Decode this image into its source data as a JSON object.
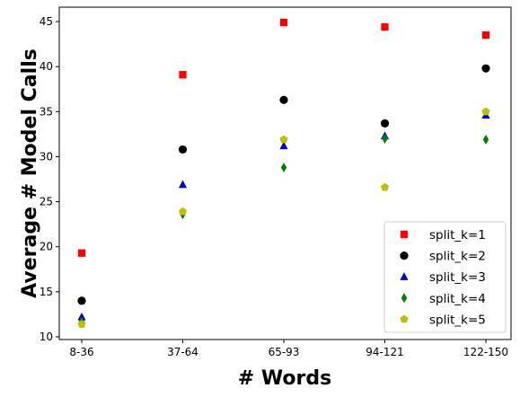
{
  "chart_data": {
    "type": "scatter",
    "title": "",
    "xlabel": "# Words",
    "ylabel": "Average # Model Calls",
    "categories": [
      "8-36",
      "37-64",
      "65-93",
      "94-121",
      "122-150"
    ],
    "ylim": [
      9.7,
      46.6
    ],
    "yticks": [
      10,
      15,
      20,
      25,
      30,
      35,
      40,
      45
    ],
    "grid": false,
    "legend_position": "bottom-right",
    "series": [
      {
        "name": "split_k=1",
        "marker": "square",
        "color": "#ff0000",
        "values": [
          19.3,
          39.1,
          44.9,
          44.4,
          43.5
        ]
      },
      {
        "name": "split_k=2",
        "marker": "circle",
        "color": "#000000",
        "values": [
          14.0,
          30.8,
          36.3,
          33.7,
          39.8
        ]
      },
      {
        "name": "split_k=3",
        "marker": "triangle",
        "color": "#0000cc",
        "values": [
          12.2,
          26.9,
          31.2,
          32.3,
          34.6
        ]
      },
      {
        "name": "split_k=4",
        "marker": "diamond",
        "color": "#008000",
        "values": [
          11.7,
          23.6,
          28.8,
          32.0,
          31.9
        ]
      },
      {
        "name": "split_k=5",
        "marker": "pentagon",
        "color": "#bfbf00",
        "values": [
          11.4,
          23.9,
          31.9,
          26.6,
          35.0
        ]
      }
    ]
  }
}
